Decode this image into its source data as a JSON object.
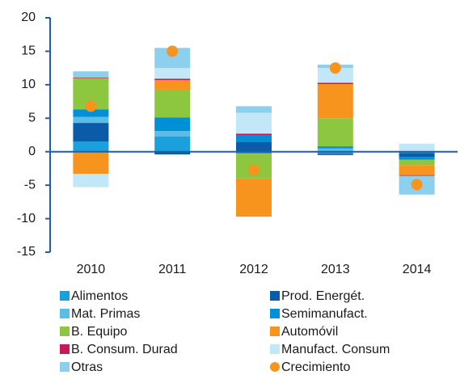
{
  "chart_data": {
    "type": "bar",
    "stacked": true,
    "categories": [
      "2010",
      "2011",
      "2012",
      "2013",
      "2014"
    ],
    "ylim": [
      -15,
      20
    ],
    "yticks": [
      -15,
      -10,
      -5,
      0,
      5,
      10,
      15,
      20
    ],
    "series": [
      {
        "name": "Alimentos",
        "color": "#1aa0dc",
        "values": [
          1.5,
          2.3,
          -0.3,
          -0.3,
          -0.2
        ]
      },
      {
        "name": "Prod. Energét.",
        "color": "#0b5ca8",
        "values": [
          2.8,
          -0.4,
          1.5,
          -0.2,
          -0.6
        ]
      },
      {
        "name": "Mat. Primas",
        "color": "#5bbde6",
        "values": [
          0.9,
          0.8,
          0,
          0.5,
          0
        ]
      },
      {
        "name": "Semimanufact.",
        "color": "#0090d8",
        "values": [
          1.1,
          2.0,
          1.0,
          0.3,
          -0.4
        ]
      },
      {
        "name": "B. Equipo",
        "color": "#8dc63f",
        "values": [
          4.7,
          4.1,
          -3.7,
          4.2,
          -0.8
        ]
      },
      {
        "name": "Automóvil",
        "color": "#f7941d",
        "values": [
          -3.3,
          1.5,
          -5.7,
          5.1,
          -1.5
        ]
      },
      {
        "name": "B. Consum. Durad",
        "color": "#c8175d",
        "values": [
          0.1,
          0.2,
          0.2,
          0.2,
          -0.1
        ]
      },
      {
        "name": "Manufact. Consum",
        "color": "#c2e7f7",
        "values": [
          -2.0,
          1.6,
          3.1,
          2.2,
          1.2
        ]
      },
      {
        "name": "Otras",
        "color": "#8dd0ee",
        "values": [
          0.9,
          3.0,
          1.0,
          0.5,
          -2.8
        ]
      },
      {
        "name": "Crecimiento",
        "color": "#f7941d",
        "type": "scatter",
        "values": [
          6.8,
          15,
          -2.7,
          12.5,
          -4.9
        ]
      }
    ]
  }
}
